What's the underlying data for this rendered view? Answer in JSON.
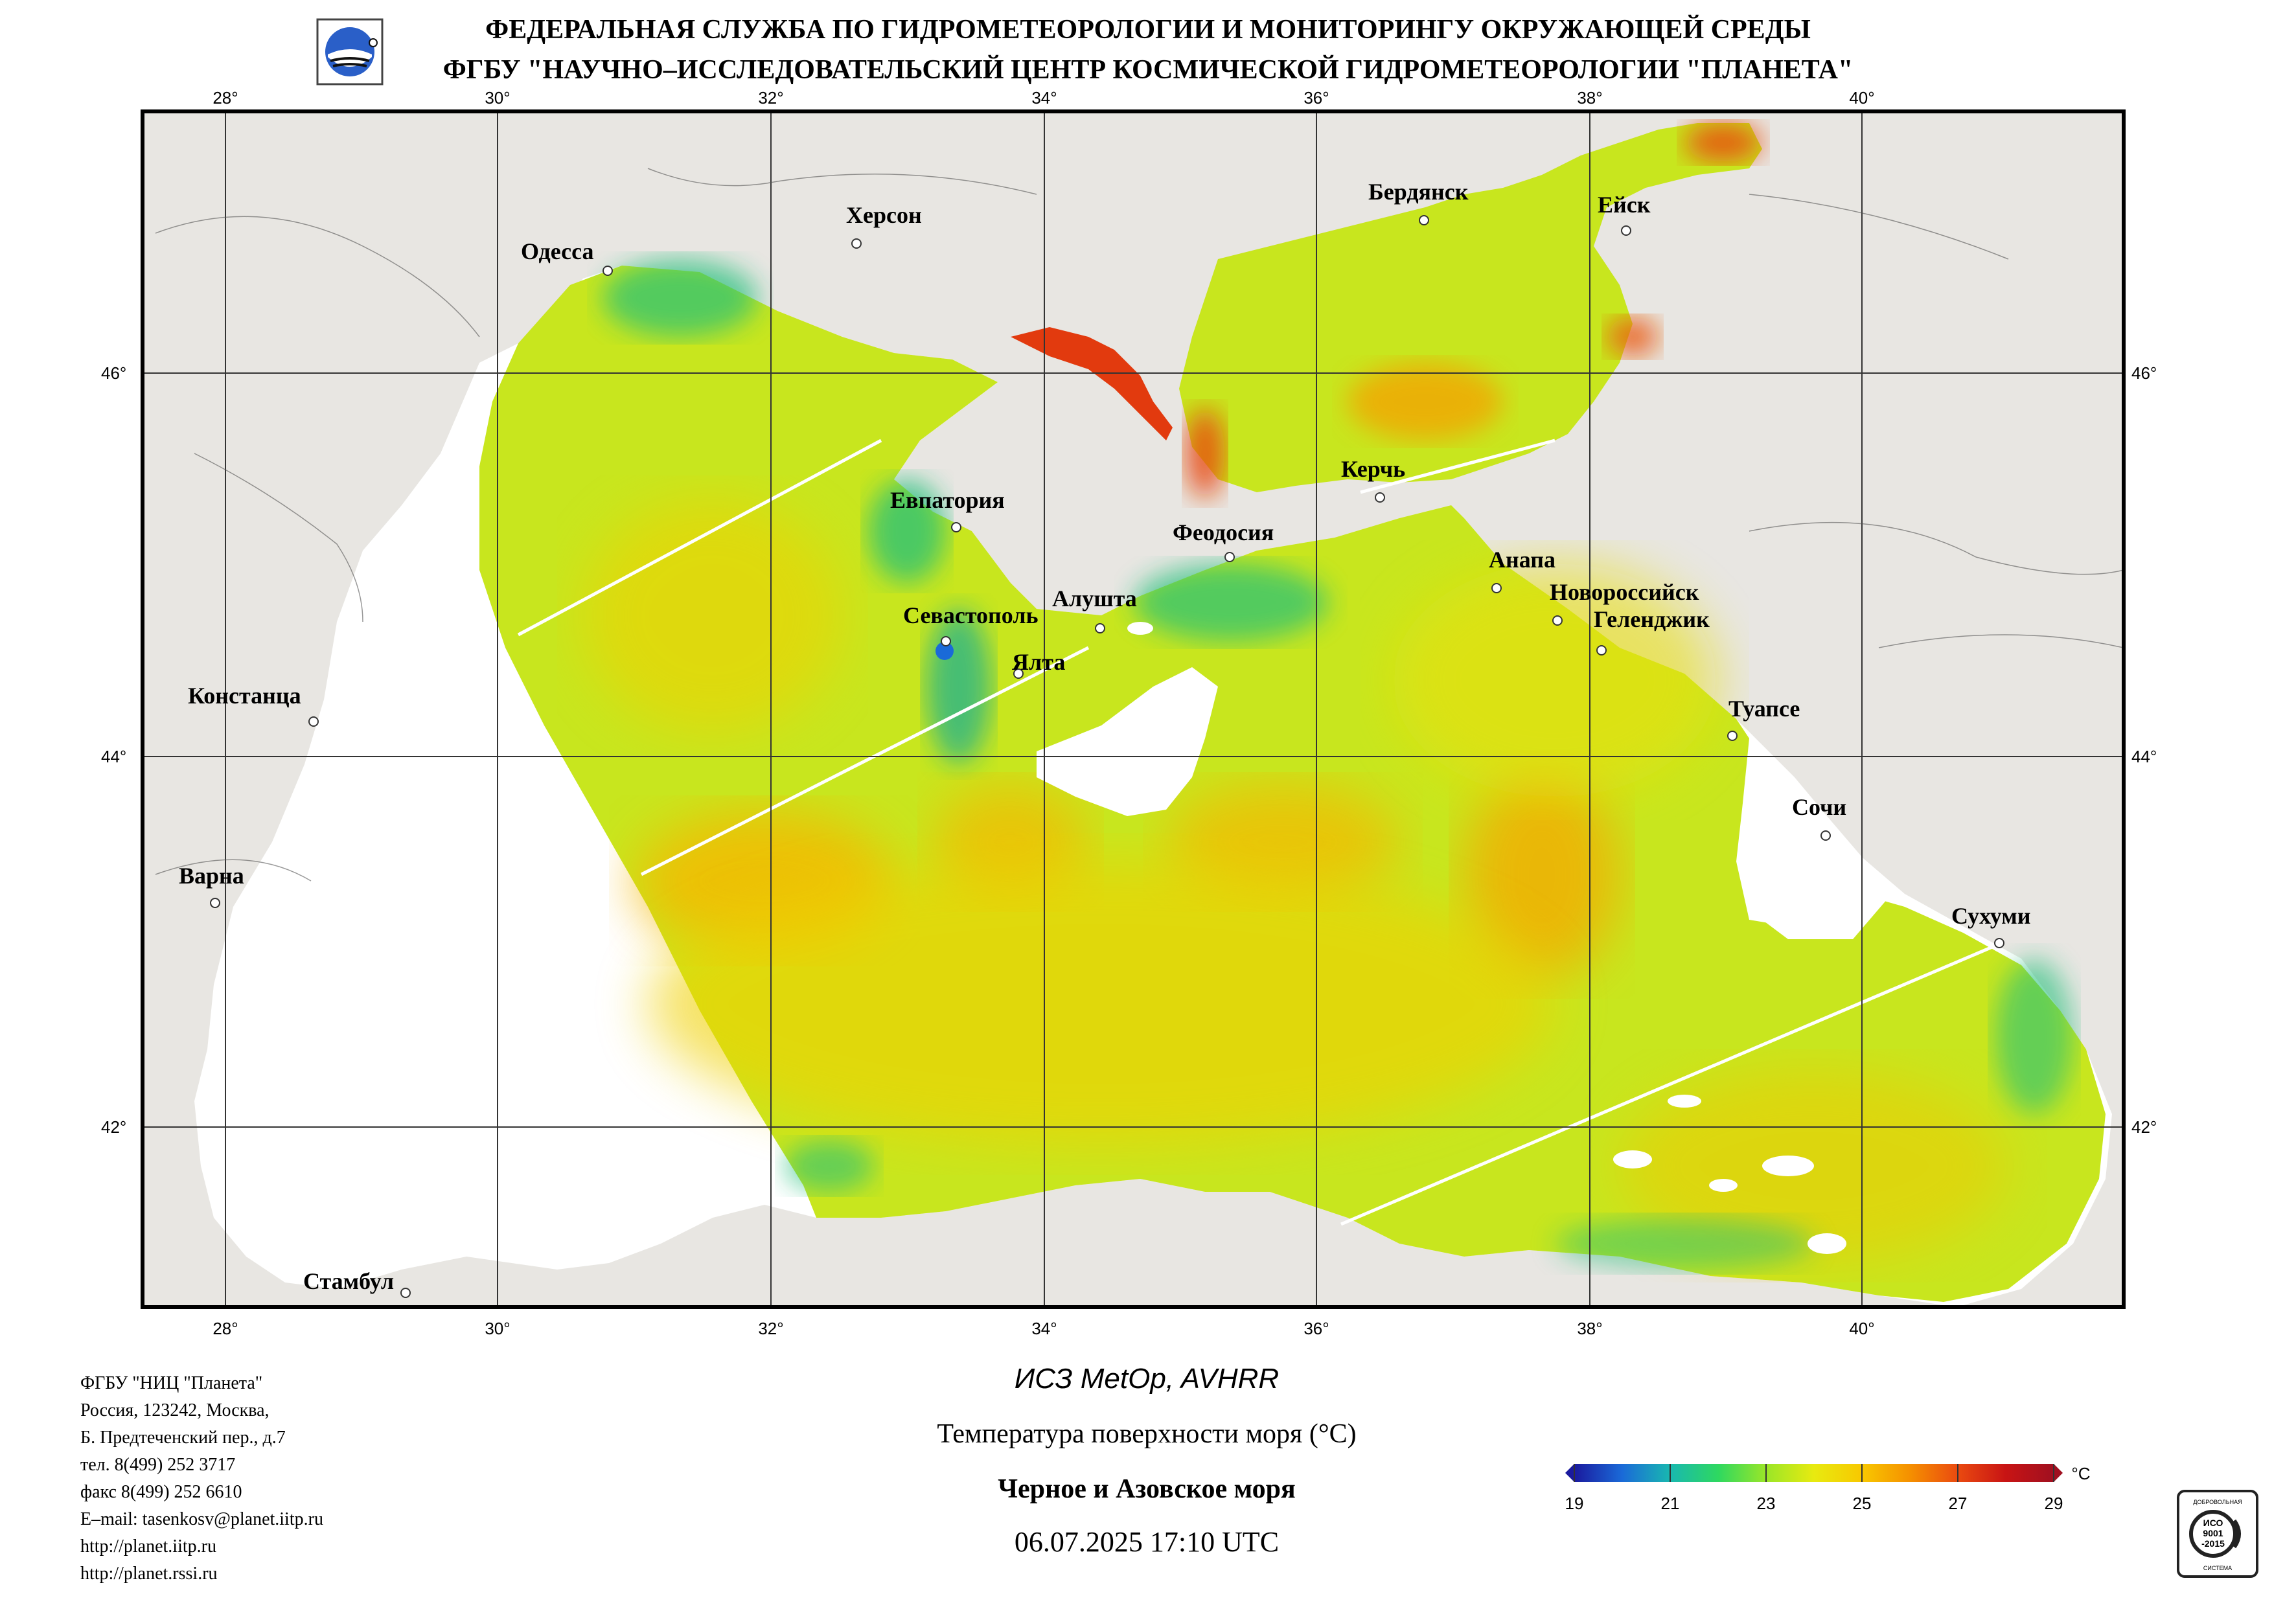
{
  "header": {
    "line1": "ФЕДЕРАЛЬНАЯ СЛУЖБА ПО ГИДРОМЕТЕОРОЛОГИИ И МОНИТОРИНГУ ОКРУЖАЮЩЕЙ СРЕДЫ",
    "line2": "ФГБУ \"НАУЧНО–ИССЛЕДОВАТЕЛЬСКИЙ ЦЕНТР КОСМИЧЕСКОЙ ГИДРОМЕТЕОРОЛОГИИ \"ПЛАНЕТА\""
  },
  "map": {
    "lon_ticks": [
      "28°",
      "30°",
      "32°",
      "34°",
      "36°",
      "38°",
      "40°"
    ],
    "lat_ticks": [
      "46°",
      "44°",
      "42°"
    ],
    "cities": [
      "Одесса",
      "Херсон",
      "Бердянск",
      "Ейск",
      "Евпатория",
      "Керчь",
      "Феодосия",
      "Анапа",
      "Новороссийск",
      "Геленджик",
      "Алушта",
      "Севастополь",
      "Ялта",
      "Констанца",
      "Туапсе",
      "Сочи",
      "Варна",
      "Сухуми",
      "Стамбул"
    ],
    "colors": {
      "land": "#e8e6e2",
      "sst_base": "#c8e61e",
      "warm": "#f5c000",
      "hot": "#e02a0a",
      "cold": "#22c07a",
      "no_data": "#ffffff"
    }
  },
  "footer": {
    "contact_lines": [
      "ФГБУ \"НИЦ \"Планета\"",
      "Россия, 123242, Москва,",
      "Б. Предтеченский пер., д.7",
      "тел. 8(499) 252 3717",
      "факс 8(499) 252 6610",
      "E–mail: tasenkosv@planet.iitp.ru",
      "http://planet.iitp.ru",
      "http://planet.rssi.ru"
    ],
    "satellite": "ИСЗ MetOp, AVHRR",
    "parameter": "Температура поверхности моря (°C)",
    "region": "Черное и Азовское моря",
    "datetime": "06.07.2025 17:10 UTC"
  },
  "colorbar": {
    "unit": "°C",
    "ticks": [
      "19",
      "21",
      "23",
      "25",
      "27",
      "29"
    ],
    "min": 19,
    "max": 29,
    "colors": [
      "#1a1a9e",
      "#1a6ad8",
      "#19b8b0",
      "#2ed860",
      "#9ae628",
      "#e8ea10",
      "#f8c800",
      "#f59000",
      "#ea4a10",
      "#c81414",
      "#a01020"
    ]
  },
  "certificate": {
    "lines": [
      "ДОБРОВОЛЬНАЯ",
      "ИСО",
      "9001",
      "-2015",
      "СИСТЕМА"
    ]
  }
}
